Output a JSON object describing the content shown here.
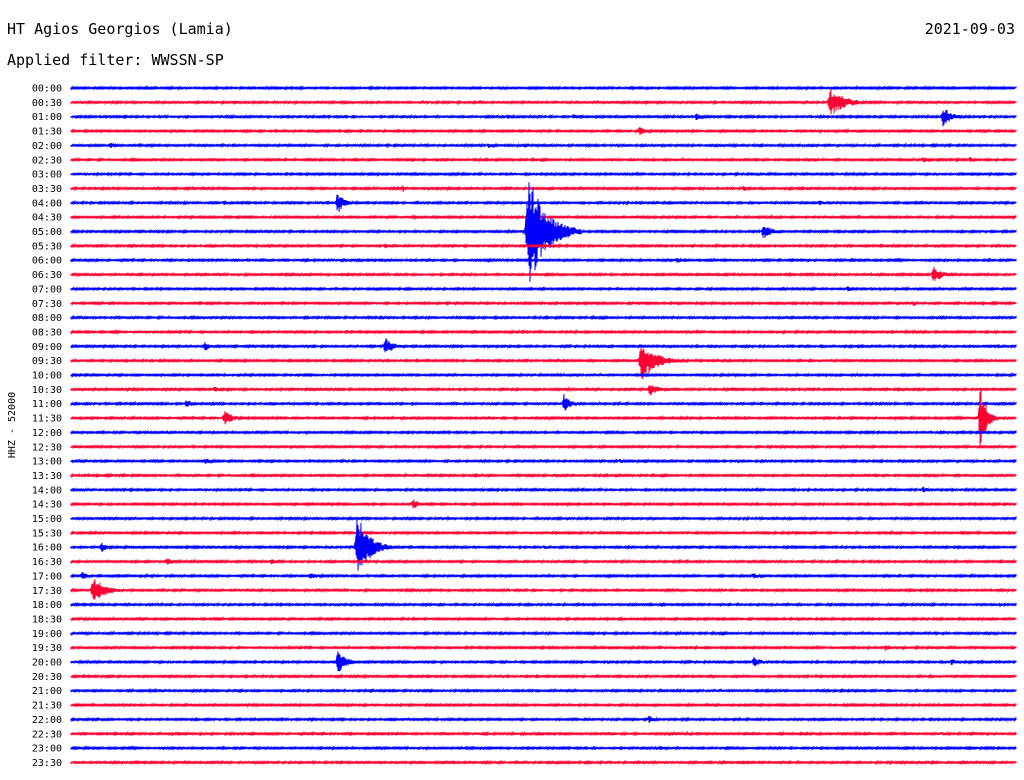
{
  "header": {
    "station": "HT Agios Georgios (Lamia)",
    "date": "2021-09-03",
    "filter": "Applied filter: WWSSN-SP"
  },
  "chart_data": {
    "type": "seismogram",
    "channel_label": "HHZ - 52000",
    "line_colors": [
      "#0000ff",
      "#ff0033"
    ],
    "row_labels": [
      "00:00",
      "00:30",
      "01:00",
      "01:30",
      "02:00",
      "02:30",
      "03:00",
      "03:30",
      "04:00",
      "04:30",
      "05:00",
      "05:30",
      "06:00",
      "06:30",
      "07:00",
      "07:30",
      "08:00",
      "08:30",
      "09:00",
      "09:30",
      "10:00",
      "10:30",
      "11:00",
      "11:30",
      "12:00",
      "12:30",
      "13:00",
      "13:30",
      "14:00",
      "14:30",
      "15:00",
      "15:30",
      "16:00",
      "16:30",
      "17:00",
      "17:30",
      "18:00",
      "18:30",
      "19:00",
      "19:30",
      "20:00",
      "20:30",
      "21:00",
      "21:30",
      "22:00",
      "22:30",
      "23:00",
      "23:30"
    ],
    "events": [
      {
        "row": 1,
        "x": 0.8,
        "amp": 14,
        "len": 0.05
      },
      {
        "row": 2,
        "x": 0.46,
        "amp": 3,
        "len": 0.02
      },
      {
        "row": 2,
        "x": 0.53,
        "amp": 3,
        "len": 0.02
      },
      {
        "row": 2,
        "x": 0.66,
        "amp": 4,
        "len": 0.02
      },
      {
        "row": 2,
        "x": 0.92,
        "amp": 11,
        "len": 0.03
      },
      {
        "row": 3,
        "x": 0.6,
        "amp": 6,
        "len": 0.02
      },
      {
        "row": 4,
        "x": 0.04,
        "amp": 3,
        "len": 0.02
      },
      {
        "row": 4,
        "x": 0.44,
        "amp": 3,
        "len": 0.02
      },
      {
        "row": 5,
        "x": 0.9,
        "amp": 4,
        "len": 0.02
      },
      {
        "row": 5,
        "x": 0.95,
        "amp": 4,
        "len": 0.01
      },
      {
        "row": 7,
        "x": 0.35,
        "amp": 4,
        "len": 0.01
      },
      {
        "row": 7,
        "x": 0.71,
        "amp": 3,
        "len": 0.02
      },
      {
        "row": 8,
        "x": 0.16,
        "amp": 3,
        "len": 0.02
      },
      {
        "row": 8,
        "x": 0.28,
        "amp": 13,
        "len": 0.02
      },
      {
        "row": 8,
        "x": 0.79,
        "amp": 3,
        "len": 0.02
      },
      {
        "row": 9,
        "x": 0.36,
        "amp": 3,
        "len": 0.02
      },
      {
        "row": 10,
        "x": 0.48,
        "amp": 55,
        "len": 0.06
      },
      {
        "row": 10,
        "x": 0.73,
        "amp": 8,
        "len": 0.03
      },
      {
        "row": 11,
        "x": 0.33,
        "amp": 3,
        "len": 0.02
      },
      {
        "row": 12,
        "x": 0.64,
        "amp": 4,
        "len": 0.01
      },
      {
        "row": 13,
        "x": 0.91,
        "amp": 9,
        "len": 0.03
      },
      {
        "row": 14,
        "x": 0.82,
        "amp": 4,
        "len": 0.02
      },
      {
        "row": 15,
        "x": 0.89,
        "amp": 3,
        "len": 0.01
      },
      {
        "row": 17,
        "x": 0.04,
        "amp": 2,
        "len": 0.03
      },
      {
        "row": 18,
        "x": 0.14,
        "amp": 5,
        "len": 0.02
      },
      {
        "row": 18,
        "x": 0.33,
        "amp": 9,
        "len": 0.03
      },
      {
        "row": 18,
        "x": 0.98,
        "amp": 3,
        "len": 0.01
      },
      {
        "row": 19,
        "x": 0.6,
        "amp": 20,
        "len": 0.05
      },
      {
        "row": 20,
        "x": 0.83,
        "amp": 2,
        "len": 0.02
      },
      {
        "row": 21,
        "x": 0.15,
        "amp": 3,
        "len": 0.02
      },
      {
        "row": 21,
        "x": 0.61,
        "amp": 7,
        "len": 0.03
      },
      {
        "row": 22,
        "x": 0.12,
        "amp": 5,
        "len": 0.02
      },
      {
        "row": 22,
        "x": 0.52,
        "amp": 10,
        "len": 0.02
      },
      {
        "row": 23,
        "x": 0.16,
        "amp": 8,
        "len": 0.03
      },
      {
        "row": 23,
        "x": 0.96,
        "amp": 40,
        "len": 0.02
      },
      {
        "row": 24,
        "x": 0.1,
        "amp": 2,
        "len": 0.02
      },
      {
        "row": 26,
        "x": 0.14,
        "amp": 4,
        "len": 0.02
      },
      {
        "row": 26,
        "x": 0.58,
        "amp": 3,
        "len": 0.01
      },
      {
        "row": 28,
        "x": 0.9,
        "amp": 3,
        "len": 0.02
      },
      {
        "row": 29,
        "x": 0.36,
        "amp": 6,
        "len": 0.02
      },
      {
        "row": 32,
        "x": 0.03,
        "amp": 6,
        "len": 0.02
      },
      {
        "row": 32,
        "x": 0.3,
        "amp": 33,
        "len": 0.04
      },
      {
        "row": 32,
        "x": 0.5,
        "amp": 3,
        "len": 0.01
      },
      {
        "row": 33,
        "x": 0.1,
        "amp": 4,
        "len": 0.02
      },
      {
        "row": 33,
        "x": 0.21,
        "amp": 3,
        "len": 0.02
      },
      {
        "row": 34,
        "x": 0.01,
        "amp": 5,
        "len": 0.02
      },
      {
        "row": 34,
        "x": 0.25,
        "amp": 3,
        "len": 0.04
      },
      {
        "row": 34,
        "x": 0.72,
        "amp": 3,
        "len": 0.03
      },
      {
        "row": 35,
        "x": 0.02,
        "amp": 14,
        "len": 0.04
      },
      {
        "row": 37,
        "x": 0.01,
        "amp": 2,
        "len": 0.03
      },
      {
        "row": 37,
        "x": 0.58,
        "amp": 2,
        "len": 0.02
      },
      {
        "row": 39,
        "x": 0.86,
        "amp": 4,
        "len": 0.02
      },
      {
        "row": 40,
        "x": 0.28,
        "amp": 12,
        "len": 0.03
      },
      {
        "row": 40,
        "x": 0.72,
        "amp": 5,
        "len": 0.03
      },
      {
        "row": 40,
        "x": 0.93,
        "amp": 4,
        "len": 0.02
      },
      {
        "row": 44,
        "x": 0.61,
        "amp": 4,
        "len": 0.02
      },
      {
        "row": 45,
        "x": 0.65,
        "amp": 2,
        "len": 0.02
      },
      {
        "row": 45,
        "x": 0.92,
        "amp": 2,
        "len": 0.02
      },
      {
        "row": 46,
        "x": 0.62,
        "amp": 2,
        "len": 0.04
      }
    ]
  }
}
